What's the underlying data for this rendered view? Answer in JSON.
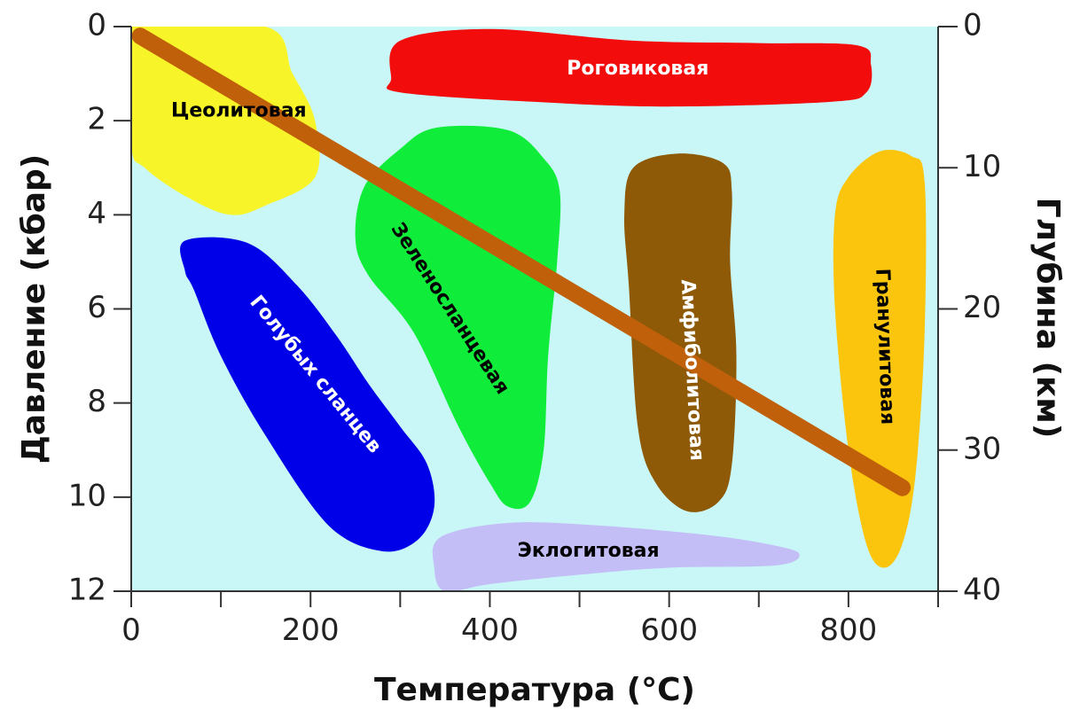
{
  "chart_data": {
    "type": "area",
    "title": "",
    "xlabel": "Температура (°C)",
    "ylabel": "Давление (кбар)",
    "y2label": "Глубина (км)",
    "xlim": [
      0,
      900
    ],
    "ylim": [
      0,
      12
    ],
    "y2lim": [
      0,
      40
    ],
    "y_inverted": true,
    "xticks": [
      0,
      200,
      400,
      600,
      800
    ],
    "x_minor_ticks": [
      100,
      300,
      500,
      700,
      900
    ],
    "yticks": [
      0,
      2,
      4,
      6,
      8,
      10,
      12
    ],
    "y2ticks": [
      0,
      10,
      20,
      30,
      40
    ],
    "background_color": "#c9f7f7",
    "grid": false,
    "gradient": {
      "name": "",
      "color": "#c0600a",
      "points": [
        [
          10,
          0.2
        ],
        [
          860,
          9.8
        ]
      ]
    },
    "facies": [
      {
        "name": "Цеолитовая",
        "color": "#f7f52a",
        "text_color": "#000000",
        "label_at": [
          120,
          1.8
        ],
        "label_rotation": 0,
        "polygon": [
          [
            0,
            0
          ],
          [
            150,
            0
          ],
          [
            180,
            1.0
          ],
          [
            205,
            2.0
          ],
          [
            205,
            3.2
          ],
          [
            150,
            3.8
          ],
          [
            110,
            4.0
          ],
          [
            60,
            3.6
          ],
          [
            15,
            3.0
          ],
          [
            0,
            2.5
          ]
        ]
      },
      {
        "name": "Роговиковая",
        "color": "#f20c0c",
        "text_color": "#ffffff",
        "label_at": [
          565,
          0.9
        ],
        "label_rotation": 0,
        "polygon": [
          [
            300,
            0.3
          ],
          [
            400,
            0.05
          ],
          [
            560,
            0.3
          ],
          [
            700,
            0.35
          ],
          [
            810,
            0.4
          ],
          [
            825,
            0.8
          ],
          [
            820,
            1.4
          ],
          [
            780,
            1.6
          ],
          [
            600,
            1.7
          ],
          [
            450,
            1.6
          ],
          [
            300,
            1.4
          ],
          [
            290,
            1.1
          ]
        ]
      },
      {
        "name": "Зеленосланцевая",
        "color": "#10ec3a",
        "text_color": "#000000",
        "label_at": [
          355,
          6.0
        ],
        "label_rotation": 57,
        "polygon": [
          [
            300,
            2.6
          ],
          [
            340,
            2.15
          ],
          [
            420,
            2.2
          ],
          [
            460,
            2.8
          ],
          [
            478,
            3.5
          ],
          [
            475,
            5.0
          ],
          [
            465,
            7.0
          ],
          [
            460,
            9.0
          ],
          [
            445,
            10.1
          ],
          [
            420,
            10.2
          ],
          [
            400,
            9.7
          ],
          [
            365,
            8.5
          ],
          [
            315,
            6.5
          ],
          [
            265,
            5.3
          ],
          [
            250,
            4.5
          ],
          [
            260,
            3.4
          ]
        ]
      },
      {
        "name": "Амфиболитовая",
        "color": "#8e5a08",
        "text_color": "#ffffff",
        "label_at": [
          625,
          7.3
        ],
        "label_rotation": 87,
        "polygon": [
          [
            560,
            3.0
          ],
          [
            610,
            2.7
          ],
          [
            660,
            2.9
          ],
          [
            670,
            3.5
          ],
          [
            668,
            5.0
          ],
          [
            675,
            7.0
          ],
          [
            670,
            9.3
          ],
          [
            655,
            10.1
          ],
          [
            620,
            10.3
          ],
          [
            585,
            9.7
          ],
          [
            565,
            8.5
          ],
          [
            555,
            5.5
          ],
          [
            550,
            4.0
          ]
        ]
      },
      {
        "name": "Гранулитовая",
        "color": "#fbc50e",
        "text_color": "#000000",
        "label_at": [
          840,
          6.8
        ],
        "label_rotation": 88,
        "polygon": [
          [
            800,
            3.2
          ],
          [
            835,
            2.65
          ],
          [
            870,
            2.75
          ],
          [
            885,
            3.3
          ],
          [
            885,
            6.5
          ],
          [
            875,
            9.5
          ],
          [
            860,
            11.0
          ],
          [
            840,
            11.5
          ],
          [
            820,
            11.0
          ],
          [
            800,
            9.0
          ],
          [
            785,
            6.0
          ],
          [
            785,
            4.0
          ]
        ]
      },
      {
        "name": "Голубых сланцев",
        "color": "#0000e8",
        "text_color": "#ffffff",
        "label_at": [
          205,
          7.4
        ],
        "label_rotation": 51,
        "polygon": [
          [
            60,
            4.55
          ],
          [
            130,
            4.6
          ],
          [
            185,
            5.5
          ],
          [
            230,
            6.6
          ],
          [
            265,
            7.6
          ],
          [
            300,
            8.5
          ],
          [
            330,
            9.3
          ],
          [
            338,
            10.2
          ],
          [
            320,
            10.9
          ],
          [
            280,
            11.15
          ],
          [
            220,
            10.6
          ],
          [
            150,
            8.7
          ],
          [
            100,
            7.0
          ],
          [
            70,
            5.6
          ],
          [
            60,
            5.2
          ]
        ]
      },
      {
        "name": "Эклогитовая",
        "color": "#c3bef5",
        "text_color": "#000000",
        "label_at": [
          510,
          11.15
        ],
        "label_rotation": 0,
        "polygon": [
          [
            345,
            10.85
          ],
          [
            420,
            10.55
          ],
          [
            520,
            10.6
          ],
          [
            640,
            10.8
          ],
          [
            710,
            11.0
          ],
          [
            745,
            11.2
          ],
          [
            720,
            11.45
          ],
          [
            600,
            11.5
          ],
          [
            500,
            11.65
          ],
          [
            400,
            11.85
          ],
          [
            350,
            12.0
          ],
          [
            338,
            11.5
          ]
        ]
      }
    ]
  }
}
